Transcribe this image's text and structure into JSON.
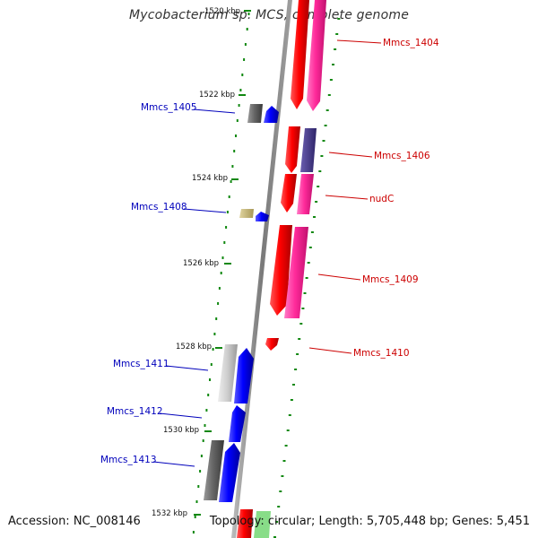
{
  "title": "Mycobacterium sp. MCS, complete genome",
  "footer": {
    "accession": "Accession: NC_008146",
    "summary": "Topology: circular; Length: 5,705,448 bp; Genes: 5,451"
  },
  "colors": {
    "backbone": "#8a8a8a",
    "forward_cds": "#ff0000",
    "forward_cds_alt": "#ff2a9a",
    "reverse_cds": "#0000ff",
    "reverse_gray": "#666666",
    "reverse_light": "#cccccc",
    "tan": "#c8b878",
    "slate": "#4a3e88",
    "tick": "#118811",
    "label_forward": "#cc0000",
    "label_reverse": "#0000bb"
  },
  "scale_labels": [
    "1520 kbp",
    "1522 kbp",
    "1524 kbp",
    "1526 kbp",
    "1528 kbp",
    "1530 kbp",
    "1532 kbp"
  ],
  "genes_forward": [
    {
      "name": "Mmcs_1404",
      "color": "forward_cds_alt"
    },
    {
      "name": "Mmcs_1406",
      "color": "slate"
    },
    {
      "name": "nudC",
      "color": "forward_cds_alt"
    },
    {
      "name": "Mmcs_1409",
      "color": "forward_cds_alt"
    },
    {
      "name": "Mmcs_1410",
      "color": "forward_cds"
    }
  ],
  "genes_reverse": [
    {
      "name": "Mmcs_1405",
      "color": "reverse_cds"
    },
    {
      "name": "Mmcs_1408",
      "color": "tan"
    },
    {
      "name": "Mmcs_1411",
      "color": "reverse_light"
    },
    {
      "name": "Mmcs_1412",
      "color": "reverse_cds"
    },
    {
      "name": "Mmcs_1413",
      "color": "reverse_gray"
    }
  ]
}
